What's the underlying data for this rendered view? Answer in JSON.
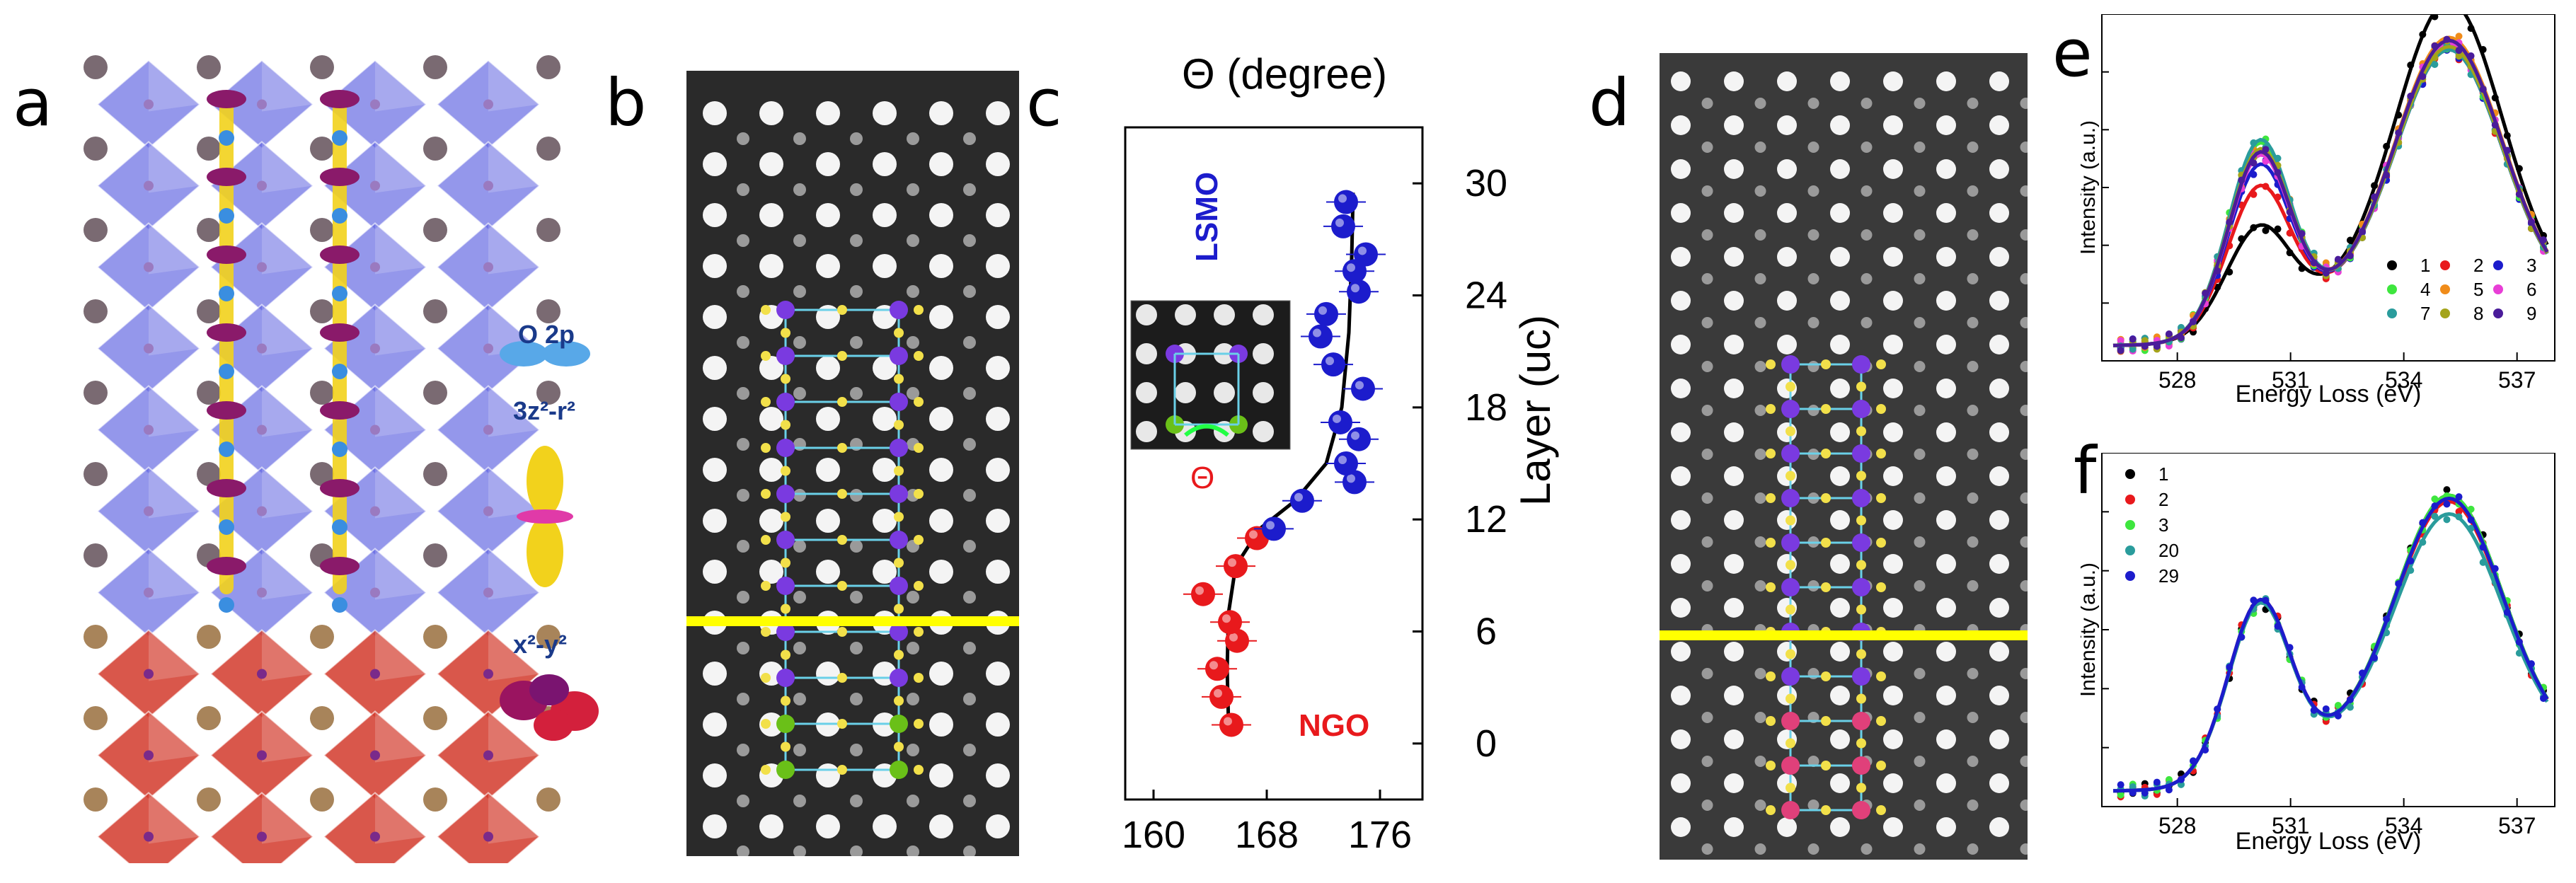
{
  "panel_labels": {
    "a": "a",
    "b": "b",
    "c": "c",
    "d": "d",
    "e": "e",
    "f": "f"
  },
  "panel_a": {
    "orbital_legend": [
      {
        "label": "O 2p",
        "color": "#4a9fe0"
      },
      {
        "label": "3z²-r²",
        "color": "#f0d020"
      },
      {
        "label": "x²-y²",
        "color": "#b0146a"
      }
    ],
    "colors": {
      "upper_octahedra": "#5a5fe0",
      "lower_octahedra": "#d23a2c",
      "A_site_upper": "#7a6a72",
      "A_site_lower": "#a8845a"
    }
  },
  "panel_b": {
    "interface_line_color": "#ffff00"
  },
  "panel_d": {
    "interface_line_color": "#ffff00"
  },
  "chart_data": [
    {
      "panel": "c",
      "type": "scatter",
      "title": "Θ (degree)",
      "xlabel": "",
      "ylabel": "Layer (uc)",
      "xlim": [
        158,
        179
      ],
      "ylim": [
        -3,
        33
      ],
      "xticks": [
        160,
        168,
        176
      ],
      "yticks": [
        0,
        6,
        12,
        18,
        24,
        30
      ],
      "annotations": [
        "LSMO",
        "NGO",
        "Θ"
      ],
      "series": [
        {
          "name": "NGO",
          "color": "#e8191c",
          "points": [
            [
              165.5,
              1
            ],
            [
              164.8,
              2.5
            ],
            [
              164.5,
              4
            ],
            [
              165.9,
              5.5
            ],
            [
              165.4,
              6.5
            ],
            [
              163.5,
              8
            ],
            [
              165.8,
              9.5
            ],
            [
              167.3,
              11
            ]
          ]
        },
        {
          "name": "LSMO",
          "color": "#1c1ccc",
          "points": [
            [
              168.5,
              11.5
            ],
            [
              170.5,
              13
            ],
            [
              174.2,
              14
            ],
            [
              173.6,
              15
            ],
            [
              174.5,
              16.3
            ],
            [
              173.2,
              17.2
            ],
            [
              174.8,
              19
            ],
            [
              172.7,
              20.3
            ],
            [
              171.8,
              21.8
            ],
            [
              172.2,
              23
            ],
            [
              174.5,
              24.2
            ],
            [
              174.2,
              25.3
            ],
            [
              175.0,
              26.2
            ],
            [
              173.4,
              27.7
            ],
            [
              173.6,
              29
            ]
          ]
        }
      ],
      "fit_curve": [
        [
          165.3,
          1
        ],
        [
          165.2,
          4
        ],
        [
          165.3,
          7
        ],
        [
          165.8,
          9.5
        ],
        [
          167.5,
          11.5
        ],
        [
          170,
          13
        ],
        [
          172.2,
          15
        ],
        [
          173.3,
          18
        ],
        [
          173.8,
          22
        ],
        [
          174.0,
          26
        ],
        [
          174.1,
          29.5
        ]
      ]
    },
    {
      "panel": "e",
      "type": "line",
      "xlabel": "Energy Loss (eV)",
      "ylabel": "Intensity (a.u.)",
      "xlim": [
        526,
        538
      ],
      "xticks": [
        528,
        531,
        534,
        537
      ],
      "series": [
        {
          "name": "1",
          "color": "#000000"
        },
        {
          "name": "2",
          "color": "#e8191c"
        },
        {
          "name": "3",
          "color": "#1c1ccc"
        },
        {
          "name": "4",
          "color": "#3ee63e"
        },
        {
          "name": "5",
          "color": "#f08c1a"
        },
        {
          "name": "6",
          "color": "#e83ed6"
        },
        {
          "name": "7",
          "color": "#2a9c9c"
        },
        {
          "name": "8",
          "color": "#a4a41a"
        },
        {
          "name": "9",
          "color": "#4a1c9a"
        }
      ]
    },
    {
      "panel": "f",
      "type": "line",
      "xlabel": "Energy Loss (eV)",
      "ylabel": "Intensity (a.u.)",
      "xlim": [
        526,
        538
      ],
      "xticks": [
        528,
        531,
        534,
        537
      ],
      "series": [
        {
          "name": "1",
          "color": "#000000"
        },
        {
          "name": "2",
          "color": "#e8191c"
        },
        {
          "name": "3",
          "color": "#3ee63e"
        },
        {
          "name": "20",
          "color": "#2a9c9c"
        },
        {
          "name": "29",
          "color": "#1c1ccc"
        }
      ]
    }
  ]
}
